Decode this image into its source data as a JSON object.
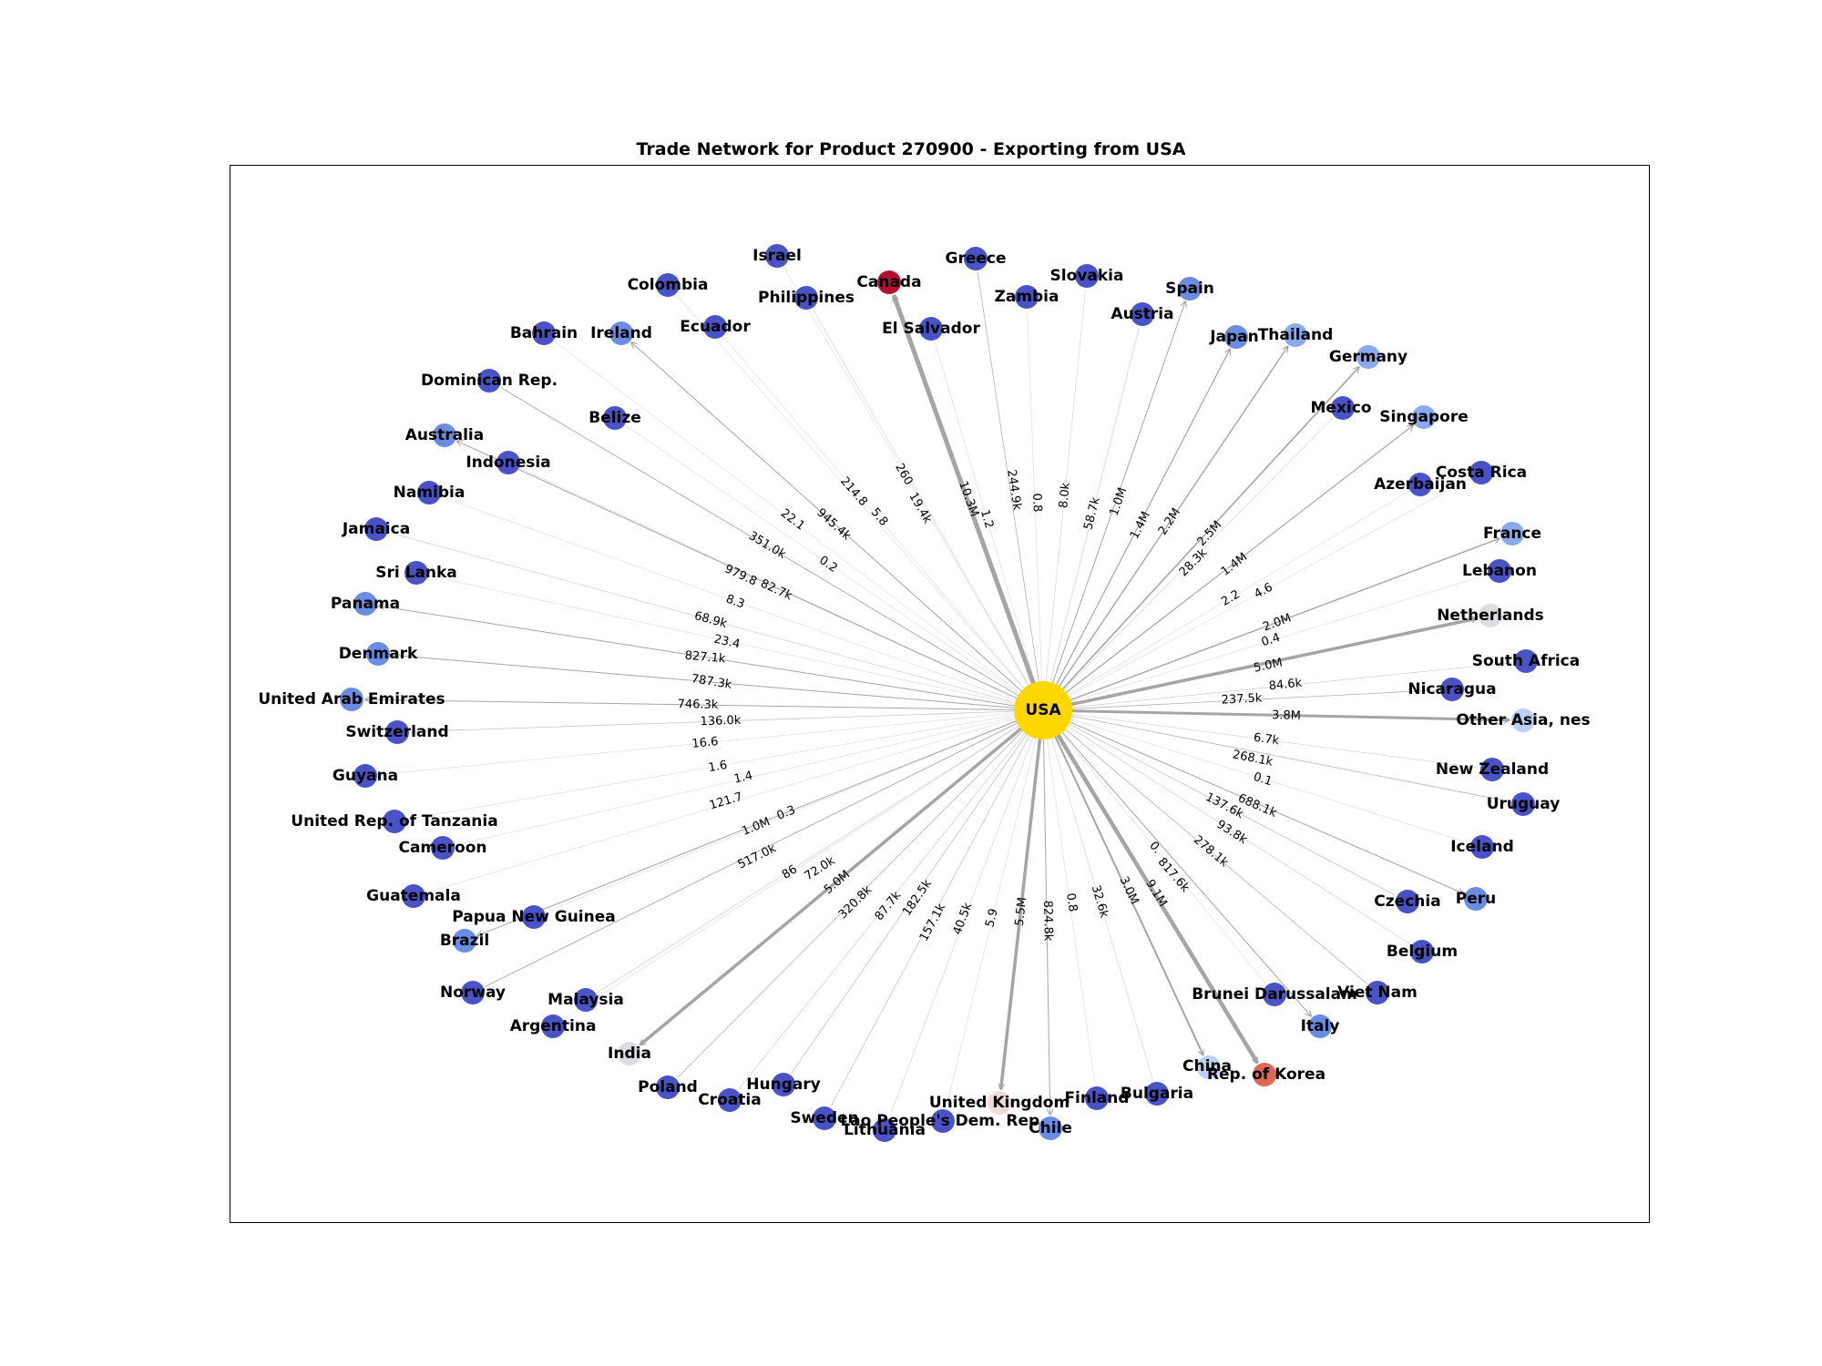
{
  "title": "Trade Network for Product 270900 - Exporting from USA",
  "center": {
    "name": "USA",
    "color": "#FFD700"
  },
  "nodes": [
    {
      "name": "Israel",
      "color": "#4a52c7",
      "label_side": "center"
    },
    {
      "name": "Colombia",
      "color": "#4a52c7",
      "label_side": "center"
    },
    {
      "name": "Canada",
      "color": "#b3112f",
      "label_side": "center"
    },
    {
      "name": "Greece",
      "color": "#4a52c7",
      "label_side": "center"
    },
    {
      "name": "Slovakia",
      "color": "#4a52c7",
      "label_side": "center"
    },
    {
      "name": "Spain",
      "color": "#6a8ce3",
      "label_side": "center"
    },
    {
      "name": "Philippines",
      "color": "#4a52c7",
      "label_side": "center"
    },
    {
      "name": "Zambia",
      "color": "#4a52c7",
      "label_side": "center"
    },
    {
      "name": "Austria",
      "color": "#4a52c7",
      "label_side": "center"
    },
    {
      "name": "Ecuador",
      "color": "#4a52c7",
      "label_side": "center"
    },
    {
      "name": "El Salvador",
      "color": "#4a52c7",
      "label_side": "center"
    },
    {
      "name": "Japan",
      "color": "#6a8ce3",
      "label_side": "center"
    },
    {
      "name": "Thailand",
      "color": "#8aaaf0",
      "label_side": "center"
    },
    {
      "name": "Bahrain",
      "color": "#4a52c7",
      "label_side": "center"
    },
    {
      "name": "Ireland",
      "color": "#6a8ce3",
      "label_side": "center"
    },
    {
      "name": "Germany",
      "color": "#8aaaf0",
      "label_side": "center"
    },
    {
      "name": "Dominican Rep.",
      "color": "#4a52c7",
      "label_side": "center"
    },
    {
      "name": "Mexico",
      "color": "#4a52c7",
      "label_side": "center"
    },
    {
      "name": "Singapore",
      "color": "#8aaaf0",
      "label_side": "center"
    },
    {
      "name": "Belize",
      "color": "#4a52c7",
      "label_side": "center"
    },
    {
      "name": "Australia",
      "color": "#6a8ce3",
      "label_side": "center"
    },
    {
      "name": "Indonesia",
      "color": "#4a52c7",
      "label_side": "center"
    },
    {
      "name": "Costa Rica",
      "color": "#4a52c7",
      "label_side": "center"
    },
    {
      "name": "Azerbaijan",
      "color": "#4a52c7",
      "label_side": "center"
    },
    {
      "name": "Namibia",
      "color": "#4a52c7",
      "label_side": "center"
    },
    {
      "name": "Jamaica",
      "color": "#4a52c7",
      "label_side": "center"
    },
    {
      "name": "France",
      "color": "#8aaaf0",
      "label_side": "center"
    },
    {
      "name": "Sri Lanka",
      "color": "#4a52c7",
      "label_side": "center"
    },
    {
      "name": "Lebanon",
      "color": "#4a52c7",
      "label_side": "center"
    },
    {
      "name": "Panama",
      "color": "#6a8ce3",
      "label_side": "center"
    },
    {
      "name": "Netherlands",
      "color": "#dcdde0",
      "label_side": "center"
    },
    {
      "name": "Denmark",
      "color": "#6a8ce3",
      "label_side": "center"
    },
    {
      "name": "South Africa",
      "color": "#4a52c7",
      "label_side": "center"
    },
    {
      "name": "Nicaragua",
      "color": "#4a52c7",
      "label_side": "center"
    },
    {
      "name": "United Arab Emirates",
      "color": "#6a8ce3",
      "label_side": "center"
    },
    {
      "name": "Other Asia, nes",
      "color": "#bcd0f5",
      "label_side": "center"
    },
    {
      "name": "Switzerland",
      "color": "#4a52c7",
      "label_side": "center"
    },
    {
      "name": "New Zealand",
      "color": "#4a52c7",
      "label_side": "center"
    },
    {
      "name": "Guyana",
      "color": "#4a52c7",
      "label_side": "center"
    },
    {
      "name": "Uruguay",
      "color": "#4a52c7",
      "label_side": "center"
    },
    {
      "name": "United Rep. of Tanzania",
      "color": "#4a52c7",
      "label_side": "center"
    },
    {
      "name": "Cameroon",
      "color": "#4a52c7",
      "label_side": "center"
    },
    {
      "name": "Iceland",
      "color": "#4a52c7",
      "label_side": "center"
    },
    {
      "name": "Guatemala",
      "color": "#4a52c7",
      "label_side": "center"
    },
    {
      "name": "Czechia",
      "color": "#4a52c7",
      "label_side": "center"
    },
    {
      "name": "Peru",
      "color": "#6a8ce3",
      "label_side": "center"
    },
    {
      "name": "Papua New Guinea",
      "color": "#4a52c7",
      "label_side": "center"
    },
    {
      "name": "Brazil",
      "color": "#6a8ce3",
      "label_side": "center"
    },
    {
      "name": "Belgium",
      "color": "#4a52c7",
      "label_side": "center"
    },
    {
      "name": "Norway",
      "color": "#4a52c7",
      "label_side": "center"
    },
    {
      "name": "Malaysia",
      "color": "#4a52c7",
      "label_side": "center"
    },
    {
      "name": "Brunei Darussalam",
      "color": "#4a52c7",
      "label_side": "center"
    },
    {
      "name": "Viet Nam",
      "color": "#4a52c7",
      "label_side": "center"
    },
    {
      "name": "Argentina",
      "color": "#4a52c7",
      "label_side": "center"
    },
    {
      "name": "Italy",
      "color": "#6a8ce3",
      "label_side": "center"
    },
    {
      "name": "India",
      "color": "#dcdde0",
      "label_side": "center"
    },
    {
      "name": "China",
      "color": "#bcd0f5",
      "label_side": "center"
    },
    {
      "name": "Rep. of Korea",
      "color": "#e06754",
      "label_side": "center"
    },
    {
      "name": "Poland",
      "color": "#4a52c7",
      "label_side": "center"
    },
    {
      "name": "Hungary",
      "color": "#4a52c7",
      "label_side": "center"
    },
    {
      "name": "Croatia",
      "color": "#4a52c7",
      "label_side": "center"
    },
    {
      "name": "Bulgaria",
      "color": "#4a52c7",
      "label_side": "center"
    },
    {
      "name": "Finland",
      "color": "#4a52c7",
      "label_side": "center"
    },
    {
      "name": "United Kingdom",
      "color": "#ecdcd8",
      "label_side": "center"
    },
    {
      "name": "Sweden",
      "color": "#4a52c7",
      "label_side": "center"
    },
    {
      "name": "Lao People's Dem. Rep.",
      "color": "#4a52c7",
      "label_side": "center"
    },
    {
      "name": "Chile",
      "color": "#6a8ce3",
      "label_side": "center"
    },
    {
      "name": "Lithuania",
      "color": "#4a52c7",
      "label_side": "center"
    }
  ],
  "edges": [
    {
      "to": "Canada",
      "label": "10.3M",
      "weight": 5
    },
    {
      "to": "Rep. of Korea",
      "label": "9.1M",
      "weight": 4.5
    },
    {
      "to": "United Kingdom",
      "label": "5.5M",
      "weight": 3.5
    },
    {
      "to": "India",
      "label": "5.0M",
      "weight": 3.5
    },
    {
      "to": "Netherlands",
      "label": "5.0M",
      "weight": 3.5
    },
    {
      "to": "Other Asia, nes",
      "label": "3.8M",
      "weight": 3
    },
    {
      "to": "China",
      "label": "3.0M",
      "weight": 2
    },
    {
      "to": "Germany",
      "label": "2.5M",
      "weight": 1.6
    },
    {
      "to": "Thailand",
      "label": "2.2M",
      "weight": 1.4
    },
    {
      "to": "France",
      "label": "2.0M",
      "weight": 1.4
    },
    {
      "to": "Singapore",
      "label": "1.4M",
      "weight": 1.2
    },
    {
      "to": "Japan",
      "label": "1.4M",
      "weight": 1.2
    },
    {
      "to": "Spain",
      "label": "1.0M",
      "weight": 1
    },
    {
      "to": "Brazil",
      "label": "1.0M",
      "weight": 1
    },
    {
      "to": "Ireland",
      "label": "945.4k",
      "weight": 1
    },
    {
      "to": "Australia",
      "label": "82.7k",
      "weight": 1
    },
    {
      "to": "Denmark",
      "label": "827.1k",
      "weight": 1
    },
    {
      "to": "Panama",
      "label": "787.3k",
      "weight": 1
    },
    {
      "to": "United Arab Emirates",
      "label": "746.3k",
      "weight": 1
    },
    {
      "to": "Peru",
      "label": "688.1k",
      "weight": 1
    },
    {
      "to": "Italy",
      "label": "817.6k",
      "weight": 1
    },
    {
      "to": "Chile",
      "label": "824.8k",
      "weight": 1
    },
    {
      "to": "Norway",
      "label": "517.0k",
      "weight": 0.9
    },
    {
      "to": "Dominican Rep.",
      "label": "351.0k",
      "weight": 0.9
    },
    {
      "to": "Poland",
      "label": "320.8k",
      "weight": 0.8
    },
    {
      "to": "Viet Nam",
      "label": "278.1k",
      "weight": 0.8
    },
    {
      "to": "Uruguay",
      "label": "268.1k",
      "weight": 0.8
    },
    {
      "to": "Greece",
      "label": "244.9k",
      "weight": 0.8
    },
    {
      "to": "Nicaragua",
      "label": "237.5k",
      "weight": 0.8
    },
    {
      "to": "Hungary",
      "label": "182.5k",
      "weight": 0.7
    },
    {
      "to": "Sweden",
      "label": "157.1k",
      "weight": 0.7
    },
    {
      "to": "Czechia",
      "label": "137.6k",
      "weight": 0.7
    },
    {
      "to": "Switzerland",
      "label": "136.0k",
      "weight": 0.7
    },
    {
      "to": "Belgium",
      "label": "93.8k",
      "weight": 0.6
    },
    {
      "to": "Croatia",
      "label": "87.7k",
      "weight": 0.6
    },
    {
      "to": "South Africa",
      "label": "84.6k",
      "weight": 0.6
    },
    {
      "to": "Malaysia",
      "label": "72.0k",
      "weight": 0.6
    },
    {
      "to": "Jamaica",
      "label": "68.9k",
      "weight": 0.6
    },
    {
      "to": "Austria",
      "label": "58.7k",
      "weight": 0.6
    },
    {
      "to": "Lithuania",
      "label": "40.5k",
      "weight": 0.5
    },
    {
      "to": "Bulgaria",
      "label": "32.6k",
      "weight": 0.5
    },
    {
      "to": "Mexico",
      "label": "28.3k",
      "weight": 0.5
    },
    {
      "to": "Philippines",
      "label": "19.4k",
      "weight": 0.5
    },
    {
      "to": "Slovakia",
      "label": "8.0k",
      "weight": 0.5
    },
    {
      "to": "New Zealand",
      "label": "6.7k",
      "weight": 0.5
    },
    {
      "to": "Colombia",
      "label": "214.8",
      "weight": 0.4
    },
    {
      "to": "Ecuador",
      "label": "5.8",
      "weight": 0.4
    },
    {
      "to": "Israel",
      "label": "260",
      "weight": 0.4
    },
    {
      "to": "El Salvador",
      "label": "1.2",
      "weight": 0.4
    },
    {
      "to": "Zambia",
      "label": "0.8",
      "weight": 0.4
    },
    {
      "to": "Bahrain",
      "label": "22.1",
      "weight": 0.4
    },
    {
      "to": "Belize",
      "label": "0.2",
      "weight": 0.4
    },
    {
      "to": "Indonesia",
      "label": "979.8",
      "weight": 0.4
    },
    {
      "to": "Namibia",
      "label": "8.3",
      "weight": 0.4
    },
    {
      "to": "Sri Lanka",
      "label": "23.4",
      "weight": 0.4
    },
    {
      "to": "Costa Rica",
      "label": "4.6",
      "weight": 0.4
    },
    {
      "to": "Azerbaijan",
      "label": "2.2",
      "weight": 0.4
    },
    {
      "to": "Lebanon",
      "label": "0.4",
      "weight": 0.4
    },
    {
      "to": "Guyana",
      "label": "16.6",
      "weight": 0.4
    },
    {
      "to": "United Rep. of Tanzania",
      "label": "1.6",
      "weight": 0.4
    },
    {
      "to": "Cameroon",
      "label": "1.4",
      "weight": 0.4
    },
    {
      "to": "Guatemala",
      "label": "121.7",
      "weight": 0.4
    },
    {
      "to": "Papua New Guinea",
      "label": "0.3",
      "weight": 0.4
    },
    {
      "to": "Argentina",
      "label": "86",
      "weight": 0.4
    },
    {
      "to": "Iceland",
      "label": "0.1",
      "weight": 0.4
    },
    {
      "to": "Brunei Darussalam",
      "label": "0.",
      "weight": 0.4
    },
    {
      "to": "Lao People's Dem. Rep.",
      "label": "5.9",
      "weight": 0.4
    },
    {
      "to": "Finland",
      "label": "0.8",
      "weight": 0.4
    }
  ]
}
